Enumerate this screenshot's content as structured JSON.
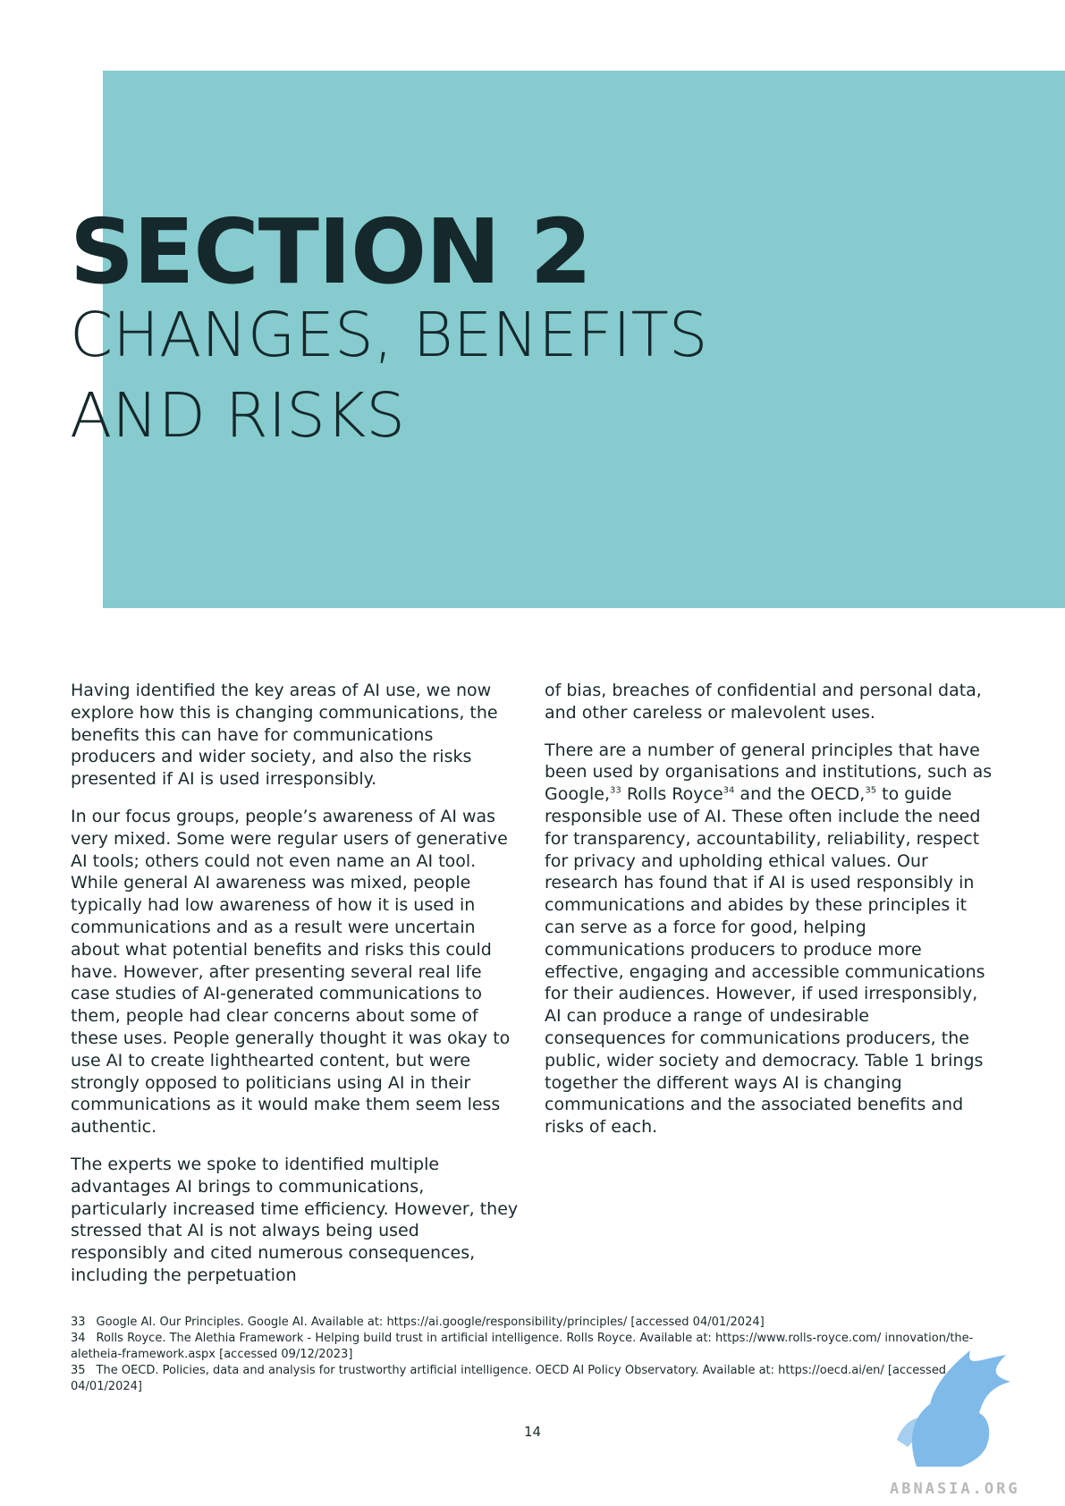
{
  "header": {
    "section_number": "SECTION 2",
    "section_title_line1": "CHANGES, BENEFITS",
    "section_title_line2": "AND RISKS"
  },
  "left_column": {
    "p1": "Having identified the key areas of AI use, we now explore how this is changing communications, the benefits this can have for communications producers and wider society, and also the risks presented if AI is used irresponsibly.",
    "p2": "In our focus groups, people’s awareness of AI was very mixed. Some were regular users of generative AI tools; others could not even name an AI tool. While general AI awareness was mixed, people typically had low awareness of how it is used in communications and as a result were uncertain about what potential benefits and risks this could have. However, after presenting several real life case studies of AI-generated communications to them, people had clear concerns about some of these uses. People generally thought it was okay to use AI to create lighthearted content, but were strongly opposed to politicians using AI in their communications as it would make them seem less authentic.",
    "p3": "The experts we spoke to identified multiple advantages AI brings to communications, particularly increased time efficiency. However, they stressed that AI is not always being used responsibly and cited numerous consequences, including the perpetuation"
  },
  "right_column": {
    "p1": "of bias, breaches of confidential and personal data, and other careless or malevolent uses.",
    "p2_a": "There are a number of general principles that have been used by organisations and institutions, such as Google,",
    "ref33": "33",
    "p2_b": " Rolls Royce",
    "ref34": "34",
    "p2_c": " and the OECD,",
    "ref35": "35",
    "p2_d": " to guide responsible use of AI. These often include the need for transparency, accountability, reliability, respect for privacy and upholding ethical values. Our research has found that if AI is used responsibly in communications and abides by these principles it can serve as a force for good, helping communications producers to produce more effective, engaging and accessible communications for their audiences. However, if used irresponsibly, AI can produce a range of undesirable consequences for communications producers, the public, wider society and democracy. Table 1 brings together the different ways AI is changing communications and the associated benefits and risks of each."
  },
  "footnotes": [
    {
      "num": "33",
      "text": "Google AI. Our Principles. Google AI. Available at: https://ai.google/responsibility/principles/ [accessed 04/01/2024]"
    },
    {
      "num": "34",
      "text": "Rolls Royce. The Alethia Framework - Helping build trust in artificial intelligence. Rolls Royce. Available at: https://www.rolls-royce.com/ innovation/the-aletheia-framework.aspx [accessed 09/12/2023]"
    },
    {
      "num": "35",
      "text": "The OECD. Policies, data and analysis for trustworthy artificial intelligence. OECD AI Policy Observatory. Available at: https://oecd.ai/en/ [accessed 04/01/2024]"
    }
  ],
  "page_number": "14",
  "watermark": {
    "text": "ABNASIA.ORG",
    "icon": "griffin-logo-icon"
  },
  "colors": {
    "teal_block": "#86cbce",
    "heading": "#15282b",
    "watermark_blue": "#6aaee6"
  }
}
